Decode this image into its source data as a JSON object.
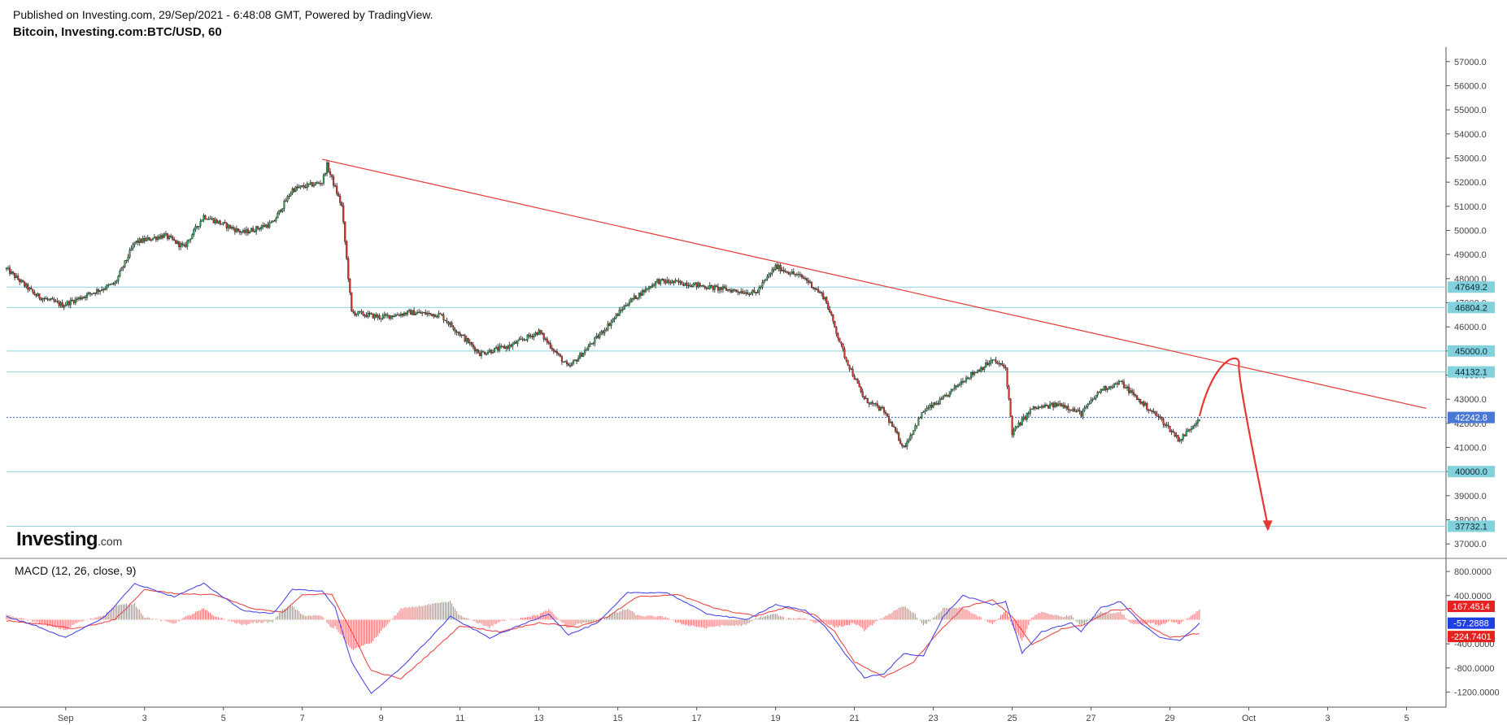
{
  "header": {
    "published": "Published on Investing.com, 29/Sep/2021 - 6:48:08 GMT, Powered by TradingView.",
    "title": "Bitcoin, Investing.com:BTC/USD, 60"
  },
  "logo": {
    "main": "Investing",
    "suffix": ".com"
  },
  "macd_label": "MACD (12, 26, close, 9)",
  "colors": {
    "up": "#26a65b",
    "down": "#c0392b",
    "candle_outline": "#1a1a1a",
    "trendline": "#e53935",
    "level": "#8fd3e0",
    "current": "#3a66d6",
    "macd": "#4a4ae8",
    "signal": "#ef4a4a",
    "hist": "#ef6f6f",
    "badge_level": "#84d1de",
    "badge_current": "#4a78d6",
    "badge_hist": "#e82020",
    "badge_macd": "#1f3fe0",
    "badge_signal": "#e82020"
  },
  "chart_data": [
    {
      "type": "candlestick",
      "title": "Bitcoin, Investing.com:BTC/USD, 60",
      "ylim": [
        36400,
        57600
      ],
      "y_ticks": [
        "57000.0",
        "56000.0",
        "55000.0",
        "54000.0",
        "53000.0",
        "52000.0",
        "51000.0",
        "50000.0",
        "49000.0",
        "48000.0",
        "47000.0",
        "46000.0",
        "45000.0",
        "44000.0",
        "43000.0",
        "42000.0",
        "41000.0",
        "40000.0",
        "39000.0",
        "38000.0",
        "37000.0"
      ],
      "x_ticks": [
        {
          "date": "2021-09-01",
          "label": "Sep"
        },
        {
          "date": "2021-09-03",
          "label": "3"
        },
        {
          "date": "2021-09-05",
          "label": "5"
        },
        {
          "date": "2021-09-07",
          "label": "7"
        },
        {
          "date": "2021-09-09",
          "label": "9"
        },
        {
          "date": "2021-09-11",
          "label": "11"
        },
        {
          "date": "2021-09-13",
          "label": "13"
        },
        {
          "date": "2021-09-15",
          "label": "15"
        },
        {
          "date": "2021-09-17",
          "label": "17"
        },
        {
          "date": "2021-09-19",
          "label": "19"
        },
        {
          "date": "2021-09-21",
          "label": "21"
        },
        {
          "date": "2021-09-23",
          "label": "23"
        },
        {
          "date": "2021-09-25",
          "label": "25"
        },
        {
          "date": "2021-09-27",
          "label": "27"
        },
        {
          "date": "2021-09-29",
          "label": "29"
        },
        {
          "date": "2021-10-01",
          "label": "Oct"
        },
        {
          "date": "2021-10-03",
          "label": "3"
        },
        {
          "date": "2021-10-05",
          "label": "5"
        }
      ],
      "x_range": [
        "2021-08-30T12:00",
        "2021-10-06T00:00"
      ],
      "price_path": [
        [
          "2021-08-30T12:00",
          48400
        ],
        [
          "2021-08-31T06:00",
          47300
        ],
        [
          "2021-08-31T22:00",
          46900
        ],
        [
          "2021-09-01T12:00",
          47300
        ],
        [
          "2021-09-02T06:00",
          47800
        ],
        [
          "2021-09-02T18:00",
          49500
        ],
        [
          "2021-09-03T12:00",
          49800
        ],
        [
          "2021-09-04T00:00",
          49300
        ],
        [
          "2021-09-04T12:00",
          50600
        ],
        [
          "2021-09-05T12:00",
          49900
        ],
        [
          "2021-09-06T06:00",
          50300
        ],
        [
          "2021-09-06T18:00",
          51700
        ],
        [
          "2021-09-07T12:00",
          52000
        ],
        [
          "2021-09-07T15:00",
          52700
        ],
        [
          "2021-09-08T00:00",
          51000
        ],
        [
          "2021-09-08T06:00",
          46600
        ],
        [
          "2021-09-09T00:00",
          46400
        ],
        [
          "2021-09-09T18:00",
          46600
        ],
        [
          "2021-09-10T12:00",
          46500
        ],
        [
          "2021-09-11T12:00",
          44900
        ],
        [
          "2021-09-12T06:00",
          45200
        ],
        [
          "2021-09-13T00:00",
          45800
        ],
        [
          "2021-09-13T18:00",
          44300
        ],
        [
          "2021-09-14T12:00",
          45600
        ],
        [
          "2021-09-15T06:00",
          47000
        ],
        [
          "2021-09-16T00:00",
          47900
        ],
        [
          "2021-09-16T18:00",
          47800
        ],
        [
          "2021-09-17T12:00",
          47600
        ],
        [
          "2021-09-18T12:00",
          47400
        ],
        [
          "2021-09-19T00:00",
          48500
        ],
        [
          "2021-09-19T18:00",
          48000
        ],
        [
          "2021-09-20T06:00",
          47200
        ],
        [
          "2021-09-20T18:00",
          44800
        ],
        [
          "2021-09-21T06:00",
          43000
        ],
        [
          "2021-09-21T18:00",
          42500
        ],
        [
          "2021-09-22T06:00",
          41000
        ],
        [
          "2021-09-22T18:00",
          42500
        ],
        [
          "2021-09-23T06:00",
          43000
        ],
        [
          "2021-09-23T18:00",
          43800
        ],
        [
          "2021-09-24T12:00",
          44600
        ],
        [
          "2021-09-24T20:00",
          44300
        ],
        [
          "2021-09-25T00:00",
          41600
        ],
        [
          "2021-09-25T12:00",
          42600
        ],
        [
          "2021-09-26T06:00",
          42800
        ],
        [
          "2021-09-26T18:00",
          42400
        ],
        [
          "2021-09-27T06:00",
          43400
        ],
        [
          "2021-09-27T18:00",
          43700
        ],
        [
          "2021-09-28T06:00",
          42900
        ],
        [
          "2021-09-28T18:00",
          42200
        ],
        [
          "2021-09-29T06:00",
          41300
        ],
        [
          "2021-09-29T18:00",
          42242.8
        ]
      ],
      "trendline": {
        "start": [
          "2021-09-07T12:00",
          52950
        ],
        "end": [
          "2021-10-05T12:00",
          42620
        ]
      },
      "projection": {
        "start": [
          "2021-09-29T18:00",
          42300
        ],
        "peak": [
          "2021-09-30T18:00",
          44450
        ],
        "end": [
          "2021-10-01T12:00",
          37600
        ]
      },
      "levels": [
        {
          "value": 47649.2,
          "label": "47649.2"
        },
        {
          "value": 46804.2,
          "label": "46804.2"
        },
        {
          "value": 45000.0,
          "label": "45000.0"
        },
        {
          "value": 44132.1,
          "label": "44132.1"
        },
        {
          "value": 40000.0,
          "label": "40000.0"
        },
        {
          "value": 37732.1,
          "label": "37732.1"
        }
      ],
      "current_price": {
        "value": 42242.8,
        "label": "42242.8"
      }
    },
    {
      "type": "macd",
      "title": "MACD (12, 26, close, 9)",
      "ylim": [
        -1450,
        950
      ],
      "y_ticks": [
        "800.0000",
        "400.0000",
        "-400.0000",
        "-800.0000",
        "-1200.0000"
      ],
      "series": [
        {
          "name": "MACD",
          "role": "macd"
        },
        {
          "name": "Signal",
          "role": "signal"
        },
        {
          "name": "Histogram",
          "role": "hist"
        }
      ],
      "macd_path": [
        [
          "2021-08-30T12:00",
          50
        ],
        [
          "2021-08-31T06:00",
          -100
        ],
        [
          "2021-09-01T00:00",
          -300
        ],
        [
          "2021-09-02T00:00",
          50
        ],
        [
          "2021-09-02T18:00",
          600
        ],
        [
          "2021-09-03T18:00",
          380
        ],
        [
          "2021-09-04T12:00",
          600
        ],
        [
          "2021-09-05T12:00",
          150
        ],
        [
          "2021-09-06T06:00",
          100
        ],
        [
          "2021-09-06T18:00",
          500
        ],
        [
          "2021-09-07T12:00",
          480
        ],
        [
          "2021-09-07T20:00",
          200
        ],
        [
          "2021-09-08T06:00",
          -700
        ],
        [
          "2021-09-08T18:00",
          -1230
        ],
        [
          "2021-09-09T12:00",
          -800
        ],
        [
          "2021-09-10T06:00",
          -300
        ],
        [
          "2021-09-10T18:00",
          50
        ],
        [
          "2021-09-11T18:00",
          -300
        ],
        [
          "2021-09-12T12:00",
          -100
        ],
        [
          "2021-09-13T06:00",
          100
        ],
        [
          "2021-09-13T18:00",
          -250
        ],
        [
          "2021-09-14T12:00",
          -50
        ],
        [
          "2021-09-15T06:00",
          450
        ],
        [
          "2021-09-16T06:00",
          450
        ],
        [
          "2021-09-17T06:00",
          100
        ],
        [
          "2021-09-18T06:00",
          0
        ],
        [
          "2021-09-19T00:00",
          250
        ],
        [
          "2021-09-19T18:00",
          150
        ],
        [
          "2021-09-20T06:00",
          -100
        ],
        [
          "2021-09-20T18:00",
          -550
        ],
        [
          "2021-09-21T06:00",
          -960
        ],
        [
          "2021-09-21T18:00",
          -900
        ],
        [
          "2021-09-22T06:00",
          -560
        ],
        [
          "2021-09-22T18:00",
          -600
        ],
        [
          "2021-09-23T06:00",
          50
        ],
        [
          "2021-09-23T18:00",
          400
        ],
        [
          "2021-09-24T12:00",
          250
        ],
        [
          "2021-09-24T20:00",
          300
        ],
        [
          "2021-09-25T06:00",
          -550
        ],
        [
          "2021-09-25T18:00",
          -200
        ],
        [
          "2021-09-26T12:00",
          -50
        ],
        [
          "2021-09-26T18:00",
          -200
        ],
        [
          "2021-09-27T06:00",
          200
        ],
        [
          "2021-09-27T18:00",
          300
        ],
        [
          "2021-09-28T06:00",
          -50
        ],
        [
          "2021-09-28T18:00",
          -300
        ],
        [
          "2021-09-29T06:00",
          -350
        ],
        [
          "2021-09-29T18:00",
          -57.2888
        ]
      ],
      "signal_path": [
        [
          "2021-08-30T12:00",
          -20
        ],
        [
          "2021-08-31T12:00",
          -80
        ],
        [
          "2021-09-01T06:00",
          -150
        ],
        [
          "2021-09-02T06:00",
          0
        ],
        [
          "2021-09-03T00:00",
          500
        ],
        [
          "2021-09-04T00:00",
          420
        ],
        [
          "2021-09-04T18:00",
          420
        ],
        [
          "2021-09-05T18:00",
          180
        ],
        [
          "2021-09-06T12:00",
          120
        ],
        [
          "2021-09-07T00:00",
          420
        ],
        [
          "2021-09-07T18:00",
          420
        ],
        [
          "2021-09-08T06:00",
          -200
        ],
        [
          "2021-09-08T18:00",
          -850
        ],
        [
          "2021-09-09T12:00",
          -980
        ],
        [
          "2021-09-10T06:00",
          -550
        ],
        [
          "2021-09-11T00:00",
          -100
        ],
        [
          "2021-09-12T00:00",
          -200
        ],
        [
          "2021-09-13T00:00",
          -50
        ],
        [
          "2021-09-14T00:00",
          -120
        ],
        [
          "2021-09-14T18:00",
          50
        ],
        [
          "2021-09-15T12:00",
          380
        ],
        [
          "2021-09-16T12:00",
          420
        ],
        [
          "2021-09-17T12:00",
          180
        ],
        [
          "2021-09-18T12:00",
          60
        ],
        [
          "2021-09-19T06:00",
          200
        ],
        [
          "2021-09-20T00:00",
          80
        ],
        [
          "2021-09-20T12:00",
          -200
        ],
        [
          "2021-09-21T00:00",
          -700
        ],
        [
          "2021-09-21T18:00",
          -950
        ],
        [
          "2021-09-22T12:00",
          -700
        ],
        [
          "2021-09-23T00:00",
          -300
        ],
        [
          "2021-09-23T18:00",
          200
        ],
        [
          "2021-09-24T12:00",
          330
        ],
        [
          "2021-09-25T00:00",
          50
        ],
        [
          "2021-09-25T12:00",
          -420
        ],
        [
          "2021-09-26T06:00",
          -150
        ],
        [
          "2021-09-26T18:00",
          -100
        ],
        [
          "2021-09-27T12:00",
          150
        ],
        [
          "2021-09-28T00:00",
          180
        ],
        [
          "2021-09-28T12:00",
          -120
        ],
        [
          "2021-09-29T00:00",
          -300
        ],
        [
          "2021-09-29T18:00",
          -224.7401
        ]
      ],
      "badges": [
        {
          "value": 167.4514,
          "label": "167.4514",
          "role": "hist"
        },
        {
          "value": -57.2888,
          "label": "-57.2888",
          "role": "macd"
        },
        {
          "value": -224.7401,
          "label": "-224.7401",
          "role": "signal"
        }
      ]
    }
  ]
}
